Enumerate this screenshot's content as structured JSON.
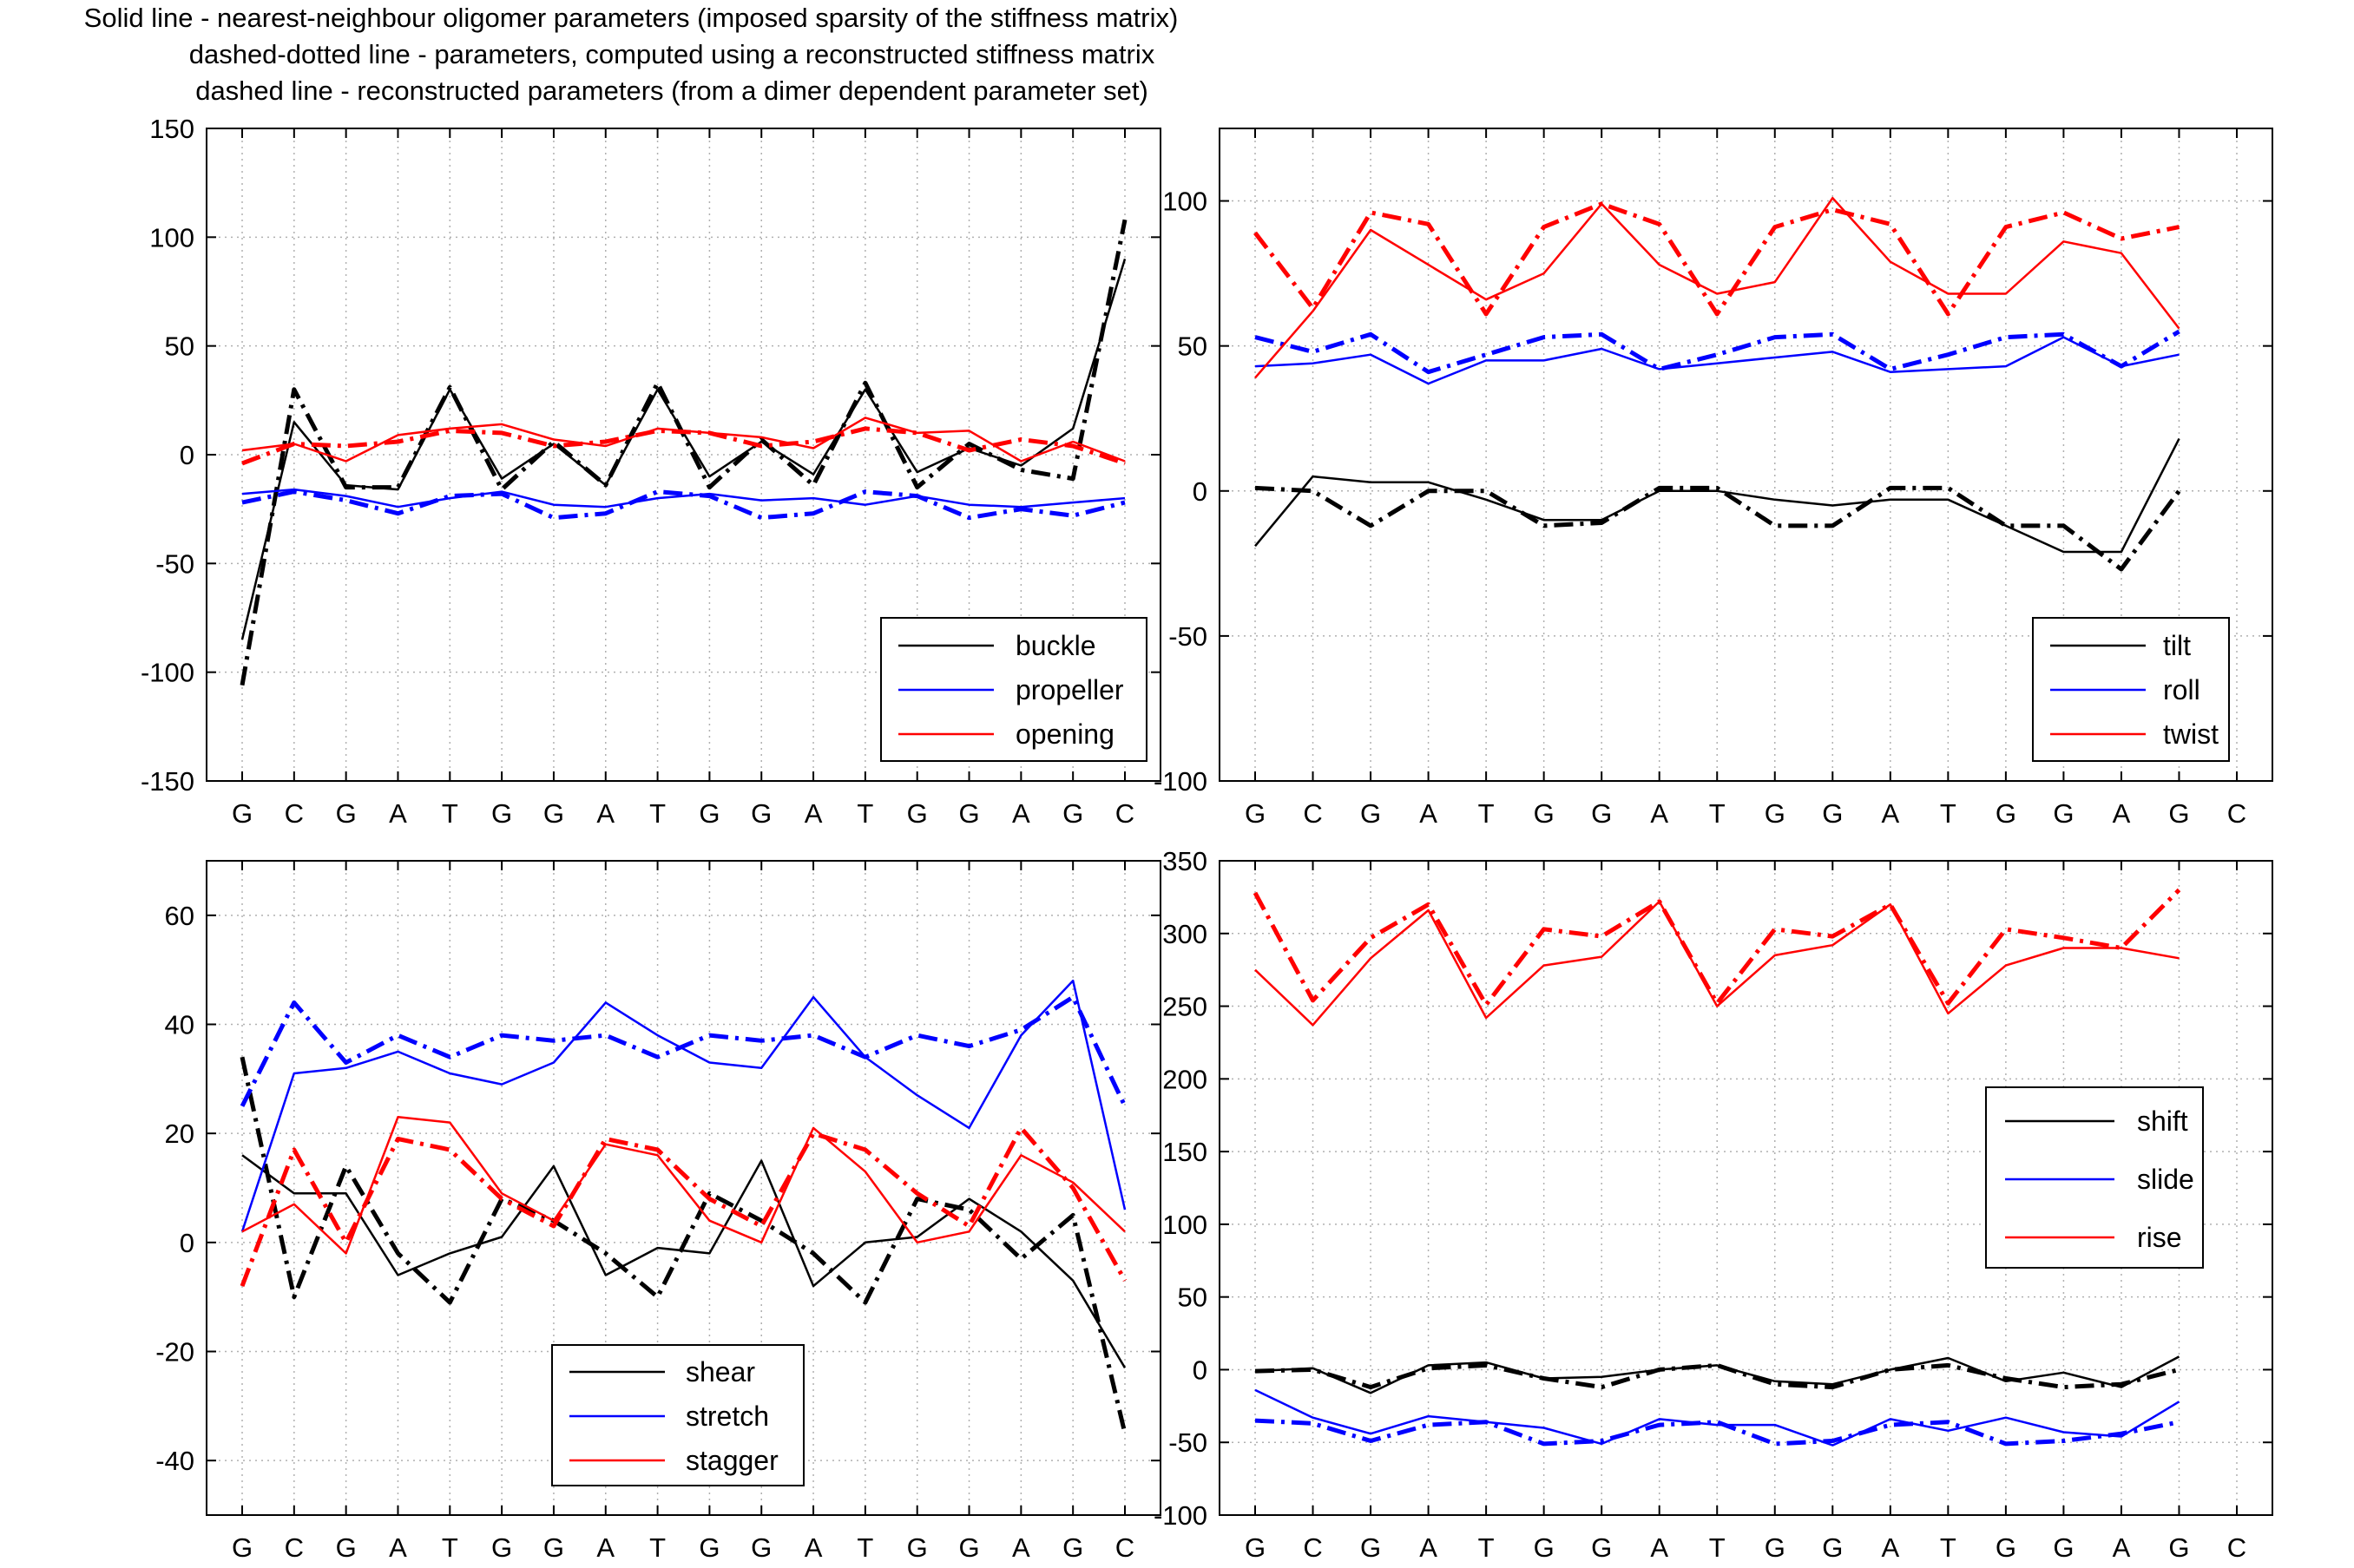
{
  "title_lines": [
    "Solid line - nearest-neighbour oligomer parameters (imposed sparsity of the stiffness matrix)",
    "dashed-dotted line - parameters, computed using a reconstructed stiffness matrix",
    "dashed line - reconstructed parameters (from a dimer dependent parameter set)"
  ],
  "colors": {
    "black": "#000000",
    "blue": "#0000ff",
    "red": "#ff0000",
    "grid": "#b0b0b0"
  },
  "chart_data": [
    {
      "type": "line",
      "id": "bp-rotations",
      "categories": [
        "G",
        "C",
        "G",
        "A",
        "T",
        "G",
        "G",
        "A",
        "T",
        "G",
        "G",
        "A",
        "T",
        "G",
        "G",
        "A",
        "G",
        "C"
      ],
      "ylim": [
        -150,
        150
      ],
      "yticks": [
        150,
        100,
        50,
        0,
        -50,
        -100,
        -150
      ],
      "grid": true,
      "legend_position": "bottom-right",
      "legend": [
        "buckle",
        "propeller",
        "opening"
      ],
      "series": [
        {
          "name": "buckle",
          "color": "#000000",
          "style": "solid",
          "values": [
            -85,
            15,
            -14,
            -16,
            30,
            -11,
            5,
            -14,
            30,
            -10,
            6,
            -9,
            30,
            -8,
            3,
            -5,
            12,
            90
          ]
        },
        {
          "name": "buckle",
          "color": "#000000",
          "style": "dashdot",
          "values": [
            -106,
            30,
            -15,
            -15,
            31,
            -16,
            6,
            -14,
            33,
            -15,
            7,
            -14,
            33,
            -15,
            5,
            -7,
            -11,
            108
          ]
        },
        {
          "name": "propeller",
          "color": "#0000ff",
          "style": "solid",
          "values": [
            -18,
            -16,
            -19,
            -24,
            -20,
            -17,
            -23,
            -24,
            -20,
            -18,
            -21,
            -20,
            -23,
            -19,
            -23,
            -24,
            -22,
            -20
          ]
        },
        {
          "name": "propeller",
          "color": "#0000ff",
          "style": "dashdot",
          "values": [
            -22,
            -17,
            -21,
            -27,
            -19,
            -18,
            -29,
            -27,
            -17,
            -19,
            -29,
            -27,
            -17,
            -19,
            -29,
            -25,
            -28,
            -22
          ]
        },
        {
          "name": "opening",
          "color": "#ff0000",
          "style": "solid",
          "values": [
            2,
            5,
            -3,
            9,
            12,
            14,
            7,
            4,
            12,
            10,
            8,
            3,
            17,
            10,
            11,
            -3,
            6,
            -3
          ]
        },
        {
          "name": "opening",
          "color": "#ff0000",
          "style": "dashdot",
          "values": [
            -4,
            5,
            4,
            6,
            11,
            10,
            4,
            6,
            11,
            10,
            4,
            6,
            12,
            10,
            2,
            7,
            4,
            -4
          ]
        }
      ]
    },
    {
      "type": "line",
      "id": "step-rotations",
      "categories": [
        "G",
        "C",
        "G",
        "A",
        "T",
        "G",
        "G",
        "A",
        "T",
        "G",
        "G",
        "A",
        "T",
        "G",
        "G",
        "A",
        "G",
        "C"
      ],
      "ylim": [
        -100,
        125
      ],
      "yticks": [
        100,
        50,
        0,
        -50,
        -100
      ],
      "grid": true,
      "legend_position": "bottom-right",
      "legend": [
        "tilt",
        "roll",
        "twist"
      ],
      "series": [
        {
          "name": "tilt",
          "color": "#000000",
          "style": "solid",
          "values": [
            -19,
            5,
            3,
            3,
            -3,
            -10,
            -10,
            0,
            0,
            -3,
            -5,
            -3,
            -3,
            -12,
            -21,
            -21,
            18,
            null
          ]
        },
        {
          "name": "tilt",
          "color": "#000000",
          "style": "dashdot",
          "values": [
            1,
            0,
            -12,
            0,
            0,
            -12,
            -11,
            1,
            1,
            -12,
            -12,
            1,
            1,
            -12,
            -12,
            -27,
            0,
            null
          ]
        },
        {
          "name": "roll",
          "color": "#0000ff",
          "style": "solid",
          "values": [
            43,
            44,
            47,
            37,
            45,
            45,
            49,
            42,
            44,
            46,
            48,
            41,
            42,
            43,
            53,
            43,
            47,
            null
          ]
        },
        {
          "name": "roll",
          "color": "#0000ff",
          "style": "dashdot",
          "values": [
            53,
            48,
            54,
            41,
            47,
            53,
            54,
            42,
            47,
            53,
            54,
            42,
            47,
            53,
            54,
            43,
            55,
            null
          ]
        },
        {
          "name": "twist",
          "color": "#ff0000",
          "style": "solid",
          "values": [
            39,
            62,
            90,
            78,
            66,
            75,
            99,
            78,
            68,
            72,
            101,
            79,
            68,
            68,
            86,
            82,
            56,
            null
          ]
        },
        {
          "name": "twist",
          "color": "#ff0000",
          "style": "dashdot",
          "values": [
            89,
            63,
            96,
            92,
            61,
            91,
            99,
            92,
            61,
            91,
            97,
            92,
            61,
            91,
            96,
            87,
            91,
            null
          ]
        }
      ]
    },
    {
      "type": "line",
      "id": "bp-translations",
      "categories": [
        "G",
        "C",
        "G",
        "A",
        "T",
        "G",
        "G",
        "A",
        "T",
        "G",
        "G",
        "A",
        "T",
        "G",
        "G",
        "A",
        "G",
        "C"
      ],
      "ylim": [
        -50,
        70
      ],
      "yticks": [
        60,
        40,
        20,
        0,
        -20,
        -40
      ],
      "grid": true,
      "legend_position": "bottom-center",
      "legend": [
        "shear",
        "stretch",
        "stagger"
      ],
      "series": [
        {
          "name": "shear",
          "color": "#000000",
          "style": "solid",
          "values": [
            16,
            9,
            9,
            -6,
            -2,
            1,
            14,
            -6,
            -1,
            -2,
            15,
            -8,
            0,
            1,
            8,
            2,
            -7,
            -23
          ]
        },
        {
          "name": "shear",
          "color": "#000000",
          "style": "dashdot",
          "values": [
            34,
            -10,
            14,
            -2,
            -11,
            8,
            4,
            -2,
            -10,
            9,
            4,
            -2,
            -11,
            8,
            6,
            -3,
            5,
            -35
          ]
        },
        {
          "name": "stretch",
          "color": "#0000ff",
          "style": "solid",
          "values": [
            2,
            31,
            32,
            35,
            31,
            29,
            33,
            44,
            38,
            33,
            32,
            45,
            34,
            27,
            21,
            38,
            48,
            6
          ]
        },
        {
          "name": "stretch",
          "color": "#0000ff",
          "style": "dashdot",
          "values": [
            25,
            44,
            33,
            38,
            34,
            38,
            37,
            38,
            34,
            38,
            37,
            38,
            34,
            38,
            36,
            39,
            45,
            25
          ]
        },
        {
          "name": "stagger",
          "color": "#ff0000",
          "style": "solid",
          "values": [
            2,
            7,
            -2,
            23,
            22,
            9,
            4,
            18,
            16,
            4,
            0,
            21,
            13,
            0,
            2,
            16,
            11,
            2
          ]
        },
        {
          "name": "stagger",
          "color": "#ff0000",
          "style": "dashdot",
          "values": [
            -8,
            17,
            0,
            19,
            17,
            8,
            3,
            19,
            17,
            8,
            3,
            20,
            17,
            9,
            3,
            21,
            10,
            -7
          ]
        }
      ]
    },
    {
      "type": "line",
      "id": "step-translations",
      "categories": [
        "G",
        "C",
        "G",
        "A",
        "T",
        "G",
        "G",
        "A",
        "T",
        "G",
        "G",
        "A",
        "T",
        "G",
        "G",
        "A",
        "G",
        "C"
      ],
      "ylim": [
        -100,
        350
      ],
      "yticks": [
        350,
        300,
        250,
        200,
        150,
        100,
        50,
        0,
        -50,
        -100
      ],
      "grid": true,
      "legend_position": "right",
      "legend": [
        "shift",
        "slide",
        "rise"
      ],
      "series": [
        {
          "name": "shift",
          "color": "#000000",
          "style": "solid",
          "values": [
            -1,
            1,
            -16,
            3,
            5,
            -6,
            -5,
            0,
            3,
            -8,
            -10,
            0,
            8,
            -8,
            -2,
            -12,
            9,
            null
          ]
        },
        {
          "name": "shift",
          "color": "#000000",
          "style": "dashdot",
          "values": [
            -1,
            0,
            -12,
            1,
            3,
            -6,
            -12,
            0,
            3,
            -10,
            -12,
            0,
            3,
            -6,
            -12,
            -10,
            0,
            null
          ]
        },
        {
          "name": "slide",
          "color": "#0000ff",
          "style": "solid",
          "values": [
            -14,
            -33,
            -44,
            -32,
            -36,
            -40,
            -51,
            -34,
            -38,
            -38,
            -52,
            -34,
            -42,
            -33,
            -43,
            -46,
            -22,
            null
          ]
        },
        {
          "name": "slide",
          "color": "#0000ff",
          "style": "dashdot",
          "values": [
            -35,
            -37,
            -49,
            -38,
            -36,
            -51,
            -49,
            -38,
            -36,
            -51,
            -49,
            -38,
            -36,
            -51,
            -49,
            -44,
            -36,
            null
          ]
        },
        {
          "name": "rise",
          "color": "#ff0000",
          "style": "solid",
          "values": [
            275,
            237,
            283,
            316,
            242,
            278,
            284,
            322,
            250,
            285,
            292,
            320,
            245,
            278,
            290,
            290,
            283,
            null
          ]
        },
        {
          "name": "rise",
          "color": "#ff0000",
          "style": "dashdot",
          "values": [
            328,
            254,
            297,
            320,
            251,
            303,
            298,
            322,
            252,
            303,
            298,
            320,
            252,
            303,
            297,
            290,
            330,
            null
          ]
        }
      ]
    }
  ]
}
